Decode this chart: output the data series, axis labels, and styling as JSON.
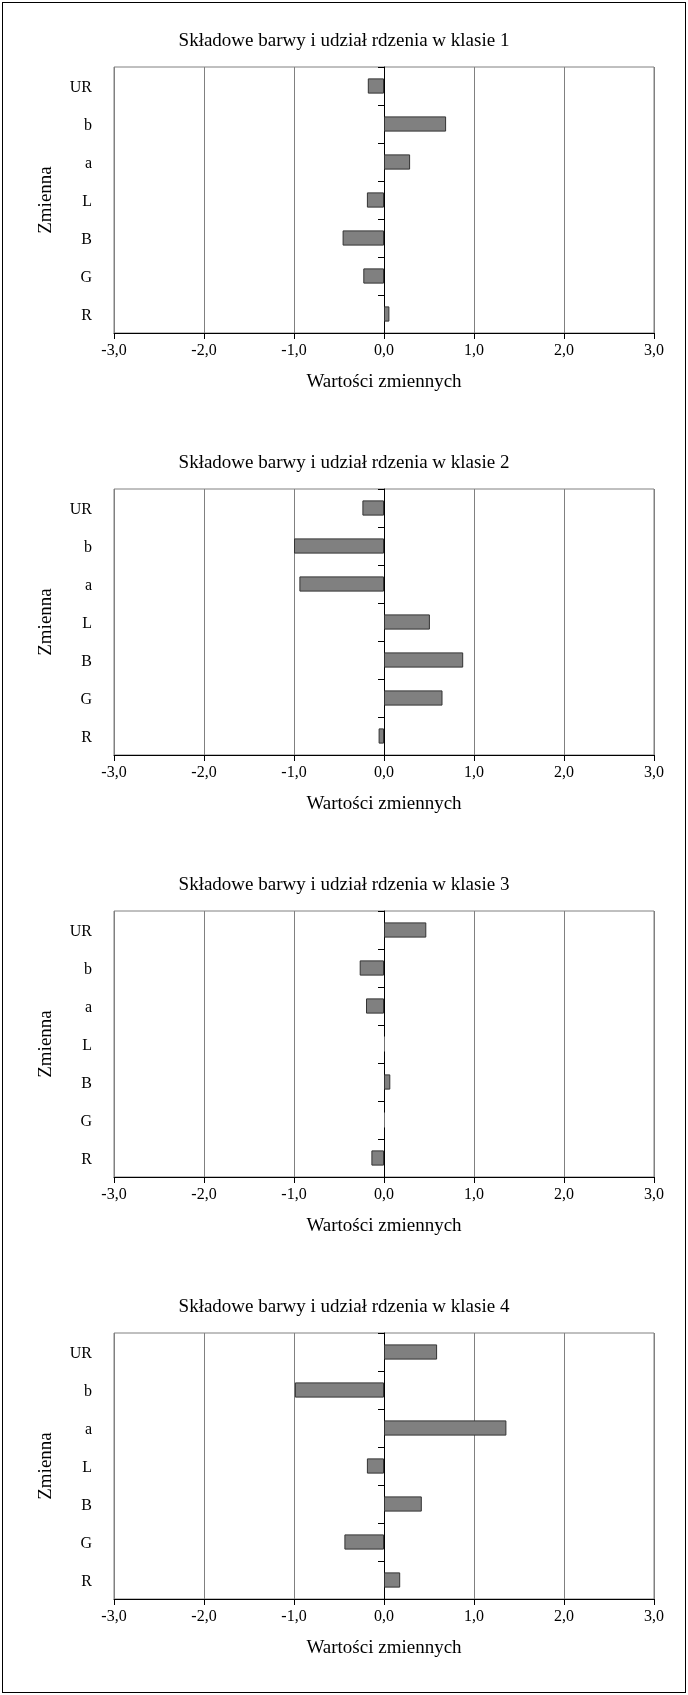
{
  "chart_data": [
    {
      "type": "bar",
      "orientation": "horizontal",
      "title": "Składowe barwy i udział rdzenia w klasie 1",
      "xlabel": "Wartości zmiennych",
      "ylabel": "Zmienna",
      "categories": [
        "UR",
        "b",
        "a",
        "L",
        "B",
        "G",
        "R"
      ],
      "values": [
        -0.18,
        0.69,
        0.29,
        -0.19,
        -0.46,
        -0.23,
        0.06
      ],
      "color": "#808080",
      "xlim": [
        -3,
        3
      ],
      "xticks": [
        {
          "value": -3,
          "label": "-3,0"
        },
        {
          "value": -2,
          "label": "-2,0"
        },
        {
          "value": -1,
          "label": "-1,0"
        },
        {
          "value": 0,
          "label": "0,0"
        },
        {
          "value": 1,
          "label": "1,0"
        },
        {
          "value": 2,
          "label": "2,0"
        },
        {
          "value": 3,
          "label": "3,0"
        }
      ],
      "grid": "x"
    },
    {
      "type": "bar",
      "orientation": "horizontal",
      "title": "Składowe barwy i udział rdzenia w klasie 2",
      "xlabel": "Wartości zmiennych",
      "ylabel": "Zmienna",
      "categories": [
        "UR",
        "b",
        "a",
        "L",
        "B",
        "G",
        "R"
      ],
      "values": [
        -0.24,
        -1.0,
        -0.94,
        0.51,
        0.88,
        0.65,
        -0.06
      ],
      "color": "#808080",
      "xlim": [
        -3,
        3
      ],
      "xticks": [
        {
          "value": -3,
          "label": "-3,0"
        },
        {
          "value": -2,
          "label": "-2,0"
        },
        {
          "value": -1,
          "label": "-1,0"
        },
        {
          "value": 0,
          "label": "0,0"
        },
        {
          "value": 1,
          "label": "1,0"
        },
        {
          "value": 2,
          "label": "2,0"
        },
        {
          "value": 3,
          "label": "3,0"
        }
      ],
      "grid": "x"
    },
    {
      "type": "bar",
      "orientation": "horizontal",
      "title": "Składowe barwy i udział rdzenia w klasie 3",
      "xlabel": "Wartości zmiennych",
      "ylabel": "Zmienna",
      "categories": [
        "UR",
        "b",
        "a",
        "L",
        "B",
        "G",
        "R"
      ],
      "values": [
        0.47,
        -0.27,
        -0.2,
        0.01,
        0.07,
        0.01,
        -0.14
      ],
      "color": "#808080",
      "xlim": [
        -3,
        3
      ],
      "xticks": [
        {
          "value": -3,
          "label": "-3,0"
        },
        {
          "value": -2,
          "label": "-2,0"
        },
        {
          "value": -1,
          "label": "-1,0"
        },
        {
          "value": 0,
          "label": "0,0"
        },
        {
          "value": 1,
          "label": "1,0"
        },
        {
          "value": 2,
          "label": "2,0"
        },
        {
          "value": 3,
          "label": "3,0"
        }
      ],
      "grid": "x"
    },
    {
      "type": "bar",
      "orientation": "horizontal",
      "title": "Składowe barwy i udział rdzenia w klasie 4",
      "xlabel": "Wartości zmiennych",
      "ylabel": "Zmienna",
      "categories": [
        "UR",
        "b",
        "a",
        "L",
        "B",
        "G",
        "R"
      ],
      "values": [
        0.59,
        -0.99,
        1.36,
        -0.19,
        0.42,
        -0.44,
        0.18
      ],
      "color": "#808080",
      "xlim": [
        -3,
        3
      ],
      "xticks": [
        {
          "value": -3,
          "label": "-3,0"
        },
        {
          "value": -2,
          "label": "-2,0"
        },
        {
          "value": -1,
          "label": "-1,0"
        },
        {
          "value": 0,
          "label": "0,0"
        },
        {
          "value": 1,
          "label": "1,0"
        },
        {
          "value": 2,
          "label": "2,0"
        },
        {
          "value": 3,
          "label": "3,0"
        }
      ],
      "grid": "x"
    }
  ]
}
